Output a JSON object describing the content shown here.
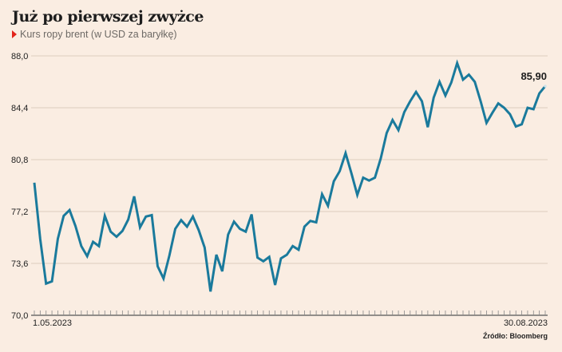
{
  "chart_data": {
    "type": "line",
    "title": "Już po pierwszej zwyżce",
    "subtitle": "Kurs ropy brent (w USD za baryłkę)",
    "source": "Źródło: Bloomberg",
    "x_start_label": "1.05.2023",
    "x_end_label": "30.08.2023",
    "yticks": [
      "70,0",
      "73,6",
      "77,2",
      "80,8",
      "84,4",
      "88,0"
    ],
    "ylim": [
      70.0,
      88.0
    ],
    "grid": true,
    "last_value_label": "85,90",
    "line_color": "#1a7a9c",
    "series": [
      {
        "values": [
          79.2,
          75.3,
          72.2,
          72.35,
          75.3,
          76.9,
          77.3,
          76.2,
          74.8,
          74.1,
          75.1,
          74.8,
          76.9,
          75.8,
          75.45,
          75.85,
          76.65,
          78.25,
          76.1,
          76.85,
          76.95,
          73.4,
          72.55,
          74.15,
          76.0,
          76.6,
          76.15,
          76.85,
          75.9,
          74.7,
          71.65,
          74.2,
          73.05,
          75.6,
          76.5,
          76.0,
          75.8,
          77.0,
          74.0,
          73.75,
          74.05,
          72.1,
          73.95,
          74.2,
          74.8,
          74.55,
          76.15,
          76.55,
          76.45,
          78.4,
          77.6,
          79.3,
          80.0,
          81.25,
          79.85,
          78.35,
          79.55,
          79.35,
          79.55,
          80.9,
          82.65,
          83.55,
          82.85,
          84.1,
          84.85,
          85.5,
          84.85,
          83.05,
          85.1,
          86.2,
          85.25,
          86.15,
          87.5,
          86.35,
          86.7,
          86.2,
          84.85,
          83.35,
          84.05,
          84.7,
          84.4,
          83.95,
          83.1,
          83.25,
          84.4,
          84.3,
          85.4,
          85.9
        ]
      }
    ]
  }
}
